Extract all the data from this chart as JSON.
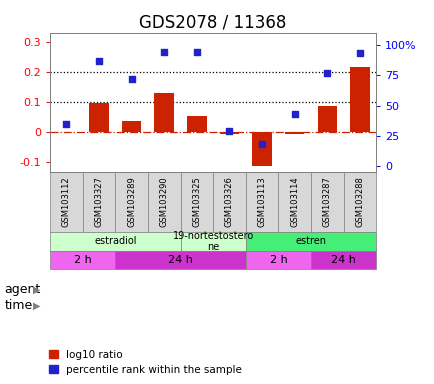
{
  "title": "GDS2078 / 11368",
  "samples": [
    "GSM103112",
    "GSM103327",
    "GSM103289",
    "GSM103290",
    "GSM103325",
    "GSM103326",
    "GSM103113",
    "GSM103114",
    "GSM103287",
    "GSM103288"
  ],
  "log10_ratio": [
    0.0,
    0.097,
    0.038,
    0.13,
    0.055,
    -0.005,
    -0.11,
    -0.004,
    0.088,
    0.215
  ],
  "percentile_rank": [
    35,
    87,
    72,
    94,
    94,
    29,
    18,
    43,
    77,
    93
  ],
  "ylim_left": [
    -0.13,
    0.33
  ],
  "ylim_right": [
    -4.3,
    110
  ],
  "yticks_left": [
    -0.1,
    0.0,
    0.1,
    0.2,
    0.3
  ],
  "yticks_right": [
    0,
    25,
    50,
    75,
    100
  ],
  "ytick_labels_left": [
    "-0.1",
    "0",
    "0.1",
    "0.2",
    "0.3"
  ],
  "ytick_labels_right": [
    "0",
    "25",
    "50",
    "75",
    "100%"
  ],
  "hlines": [
    0.1,
    0.2
  ],
  "agent_groups": [
    {
      "label": "estradiol",
      "start": 0,
      "end": 4,
      "color": "#ccffcc"
    },
    {
      "label": "19-nortestostero\nne",
      "start": 4,
      "end": 6,
      "color": "#ccffcc"
    },
    {
      "label": "estren",
      "start": 6,
      "end": 10,
      "color": "#44ee77"
    }
  ],
  "time_groups": [
    {
      "label": "2 h",
      "start": 0,
      "end": 2,
      "color": "#ee55ee"
    },
    {
      "label": "24 h",
      "start": 2,
      "end": 6,
      "color": "#ee55ee"
    },
    {
      "label": "2 h",
      "start": 6,
      "end": 8,
      "color": "#ee55ee"
    },
    {
      "label": "24 h",
      "start": 8,
      "end": 10,
      "color": "#ee55ee"
    }
  ],
  "agent_light_color": "#ccffcc",
  "agent_dark_color": "#44ee77",
  "time_color": "#ee55ee",
  "bar_color": "#cc2200",
  "dot_color": "#2222cc",
  "zero_line_color": "#cc2200",
  "title_fontsize": 12,
  "tick_fontsize": 8,
  "sample_fontsize": 6,
  "row_label_fontsize": 9,
  "legend_fontsize": 7.5
}
